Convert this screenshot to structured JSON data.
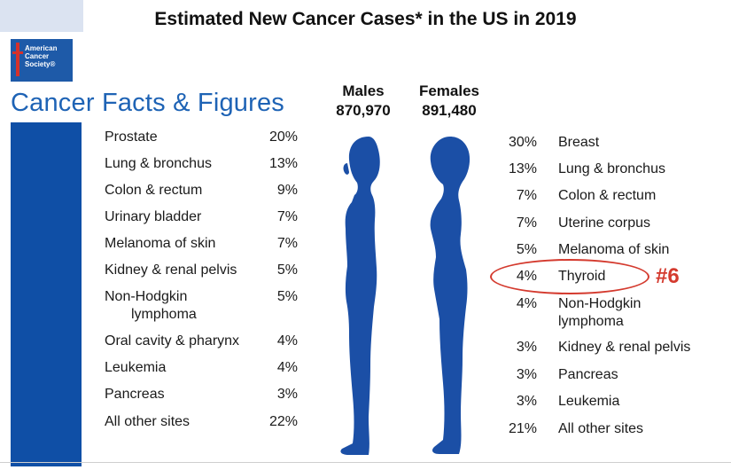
{
  "header": {
    "title": "Estimated New Cancer Cases* in the US in 2019"
  },
  "branding": {
    "logo_lines": [
      "American",
      "Cancer",
      "Society®"
    ],
    "subtitle": "Cancer Facts & Figures",
    "brand_color": "#1e63b5"
  },
  "chart_data": {
    "type": "table",
    "title": "Estimated New Cancer Cases* in the US in 2019",
    "males": {
      "label": "Males",
      "total": "870,970",
      "sites": [
        {
          "site": "Prostate",
          "pct": "20%"
        },
        {
          "site": "Lung & bronchus",
          "pct": "13%"
        },
        {
          "site": "Colon & rectum",
          "pct": "9%"
        },
        {
          "site": "Urinary bladder",
          "pct": "7%"
        },
        {
          "site": "Melanoma of skin",
          "pct": "7%"
        },
        {
          "site": "Kidney & renal pelvis",
          "pct": "5%"
        },
        {
          "site": "Non-Hodgkin",
          "site_line2": "lymphoma",
          "pct": "5%"
        },
        {
          "site": "Oral cavity & pharynx",
          "pct": "4%"
        },
        {
          "site": "Leukemia",
          "pct": "4%"
        },
        {
          "site": "Pancreas",
          "pct": "3%"
        },
        {
          "site": "All other sites",
          "pct": "22%"
        }
      ]
    },
    "females": {
      "label": "Females",
      "total": "891,480",
      "sites": [
        {
          "site": "Breast",
          "pct": "30%"
        },
        {
          "site": "Lung & bronchus",
          "pct": "13%"
        },
        {
          "site": "Colon & rectum",
          "pct": "7%"
        },
        {
          "site": "Uterine corpus",
          "pct": "7%"
        },
        {
          "site": "Melanoma of skin",
          "pct": "5%"
        },
        {
          "site": "Thyroid",
          "pct": "4%"
        },
        {
          "site": "Non-Hodgkin",
          "site_line2": "lymphoma",
          "pct": "4%"
        },
        {
          "site": "Kidney & renal pelvis",
          "pct": "3%"
        },
        {
          "site": "Pancreas",
          "pct": "3%"
        },
        {
          "site": "Leukemia",
          "pct": "3%"
        },
        {
          "site": "All other sites",
          "pct": "21%"
        }
      ]
    },
    "annotation": {
      "highlighted_site": "Thyroid",
      "label": "#6",
      "color": "#d43a2e"
    }
  }
}
